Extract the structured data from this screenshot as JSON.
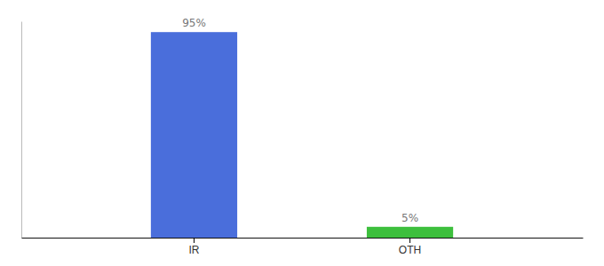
{
  "chart_data": {
    "type": "bar",
    "categories": [
      "IR",
      "OTH"
    ],
    "values": [
      95,
      5
    ],
    "value_labels": [
      "95%",
      "5%"
    ],
    "data_labels": true,
    "colors": [
      "#4a6edb",
      "#3dbf3d"
    ],
    "ylim": [
      0,
      100
    ],
    "tick_labels": "x",
    "grid": false
  }
}
